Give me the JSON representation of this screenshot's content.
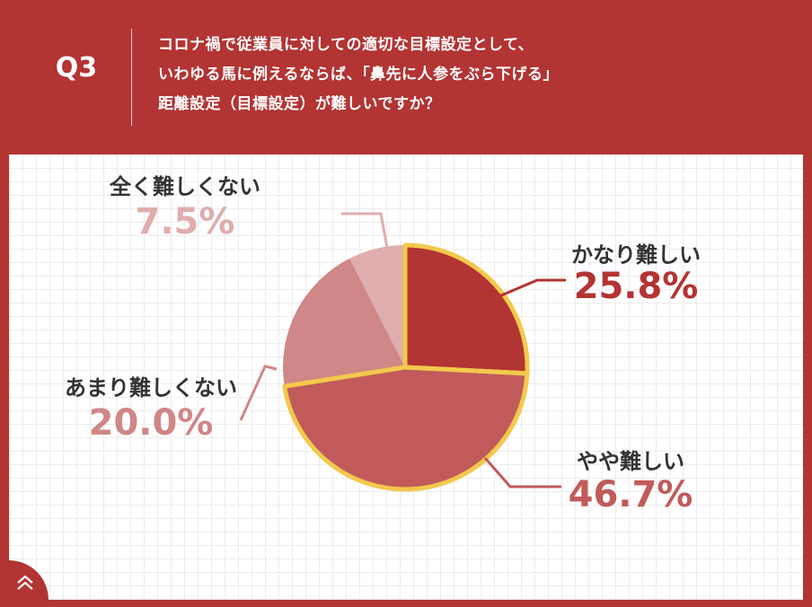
{
  "header": {
    "q_label": "Q3",
    "question_lines": [
      "コロナ禍で従業員に対しての適切な目標設定として、",
      "いわゆる馬に例えるならば、「鼻先に人参をぶら下げる」",
      "距離設定（目標設定）が難しいですか？"
    ]
  },
  "chart_data": {
    "type": "pie",
    "title": "",
    "start_angle_deg": 0,
    "direction": "clockwise",
    "highlighted_slice": "かなり難しい",
    "highlight_stroke": "#f2c94c",
    "slices": [
      {
        "label": "かなり難しい",
        "value": 25.8,
        "value_text": "25.8%",
        "color": "#b23433",
        "label_color": "#b23433"
      },
      {
        "label": "やや難しい",
        "value": 46.7,
        "value_text": "46.7%",
        "color": "#c15b5b",
        "label_color": "#c15b5b"
      },
      {
        "label": "あまり難しくない",
        "value": 20.0,
        "value_text": "20.0%",
        "color": "#cf8787",
        "label_color": "#cf8787"
      },
      {
        "label": "全く難しくない",
        "value": 7.5,
        "value_text": "7.5%",
        "color": "#dfadad",
        "label_color": "#dfadad"
      }
    ]
  },
  "icons": {
    "corner": "chevron-up-double-icon"
  }
}
